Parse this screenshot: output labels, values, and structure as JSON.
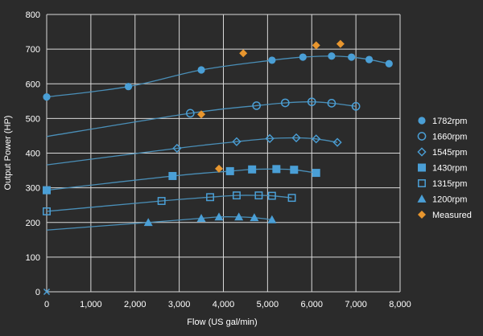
{
  "chart_data": {
    "type": "scatter",
    "xlabel": "Flow (US gal/min)",
    "ylabel": "Output Power (HP)",
    "xlim": [
      0,
      8000
    ],
    "ylim": [
      0,
      800
    ],
    "x_ticks": [
      "0",
      "1,000",
      "2,000",
      "3,000",
      "4,000",
      "5,000",
      "6,000",
      "7,000",
      "8,000"
    ],
    "y_ticks": [
      "0",
      "100",
      "200",
      "300",
      "400",
      "500",
      "600",
      "700",
      "800"
    ],
    "x_tick_values": [
      0,
      1000,
      2000,
      3000,
      4000,
      5000,
      6000,
      7000,
      8000
    ],
    "y_tick_values": [
      0,
      100,
      200,
      300,
      400,
      500,
      600,
      700,
      800
    ],
    "grid": true,
    "legend_position": "right",
    "colors": {
      "background": "#2b2b2b",
      "grid": "#d9d9d9",
      "series": "#4a9fd6",
      "line": "#4a8fb8",
      "measured": "#e8962e"
    },
    "series": [
      {
        "name": "1782rpm",
        "marker": "circle-filled",
        "line_points": [
          [
            0,
            562
          ],
          [
            1850,
            592
          ],
          [
            3500,
            640
          ],
          [
            5100,
            668
          ],
          [
            5800,
            677
          ],
          [
            6450,
            680
          ],
          [
            6900,
            677
          ],
          [
            7300,
            670
          ],
          [
            7750,
            658
          ]
        ],
        "marker_points": [
          [
            0,
            562
          ],
          [
            1850,
            592
          ],
          [
            3500,
            640
          ],
          [
            5100,
            668
          ],
          [
            5800,
            677
          ],
          [
            6450,
            680
          ],
          [
            6900,
            677
          ],
          [
            7300,
            670
          ],
          [
            7750,
            658
          ]
        ]
      },
      {
        "name": "1660rpm",
        "marker": "circle-open",
        "line_points": [
          [
            0,
            448
          ],
          [
            3250,
            515
          ],
          [
            4750,
            537
          ],
          [
            5400,
            545
          ],
          [
            6000,
            548
          ],
          [
            6450,
            544
          ],
          [
            7000,
            535
          ]
        ],
        "marker_points": [
          [
            3250,
            515
          ],
          [
            4750,
            537
          ],
          [
            5400,
            545
          ],
          [
            6000,
            548
          ],
          [
            6450,
            544
          ],
          [
            7000,
            535
          ]
        ]
      },
      {
        "name": "1545rpm",
        "marker": "diamond-open",
        "line_points": [
          [
            0,
            366
          ],
          [
            2950,
            414
          ],
          [
            4300,
            433
          ],
          [
            5050,
            442
          ],
          [
            5650,
            444
          ],
          [
            6100,
            441
          ],
          [
            6580,
            431
          ]
        ],
        "marker_points": [
          [
            2950,
            414
          ],
          [
            4300,
            433
          ],
          [
            5050,
            442
          ],
          [
            5650,
            444
          ],
          [
            6100,
            441
          ],
          [
            6580,
            431
          ]
        ]
      },
      {
        "name": "1430rpm",
        "marker": "square-filled",
        "line_points": [
          [
            0,
            293
          ],
          [
            2850,
            334
          ],
          [
            4150,
            348
          ],
          [
            4650,
            353
          ],
          [
            5200,
            354
          ],
          [
            5600,
            352
          ],
          [
            6100,
            343
          ]
        ],
        "marker_points": [
          [
            0,
            293
          ],
          [
            2850,
            334
          ],
          [
            4150,
            348
          ],
          [
            4650,
            353
          ],
          [
            5200,
            354
          ],
          [
            5600,
            352
          ],
          [
            6100,
            343
          ]
        ]
      },
      {
        "name": "1315rpm",
        "marker": "square-open",
        "line_points": [
          [
            0,
            232
          ],
          [
            2600,
            262
          ],
          [
            3700,
            273
          ],
          [
            4300,
            278
          ],
          [
            4800,
            278
          ],
          [
            5100,
            277
          ],
          [
            5550,
            271
          ]
        ],
        "marker_points": [
          [
            0,
            232
          ],
          [
            2600,
            262
          ],
          [
            3700,
            273
          ],
          [
            4300,
            278
          ],
          [
            4800,
            278
          ],
          [
            5100,
            277
          ],
          [
            5550,
            271
          ]
        ]
      },
      {
        "name": "1200rpm",
        "marker": "triangle-filled",
        "line_points": [
          [
            0,
            178
          ],
          [
            2300,
            200
          ],
          [
            3500,
            212
          ],
          [
            3900,
            216
          ],
          [
            4350,
            216
          ],
          [
            4700,
            214
          ],
          [
            5100,
            208
          ]
        ],
        "marker_points": [
          [
            2300,
            200
          ],
          [
            3500,
            212
          ],
          [
            3900,
            216
          ],
          [
            4350,
            216
          ],
          [
            4700,
            214
          ],
          [
            5100,
            208
          ]
        ]
      },
      {
        "name": "Measured",
        "marker": "diamond-filled",
        "color": "#e8962e",
        "line_points": [],
        "marker_points": [
          [
            4450,
            688
          ],
          [
            6100,
            711
          ],
          [
            6650,
            715
          ],
          [
            3500,
            512
          ],
          [
            3900,
            355
          ]
        ]
      }
    ],
    "origin_marker": [
      0,
      0
    ]
  }
}
